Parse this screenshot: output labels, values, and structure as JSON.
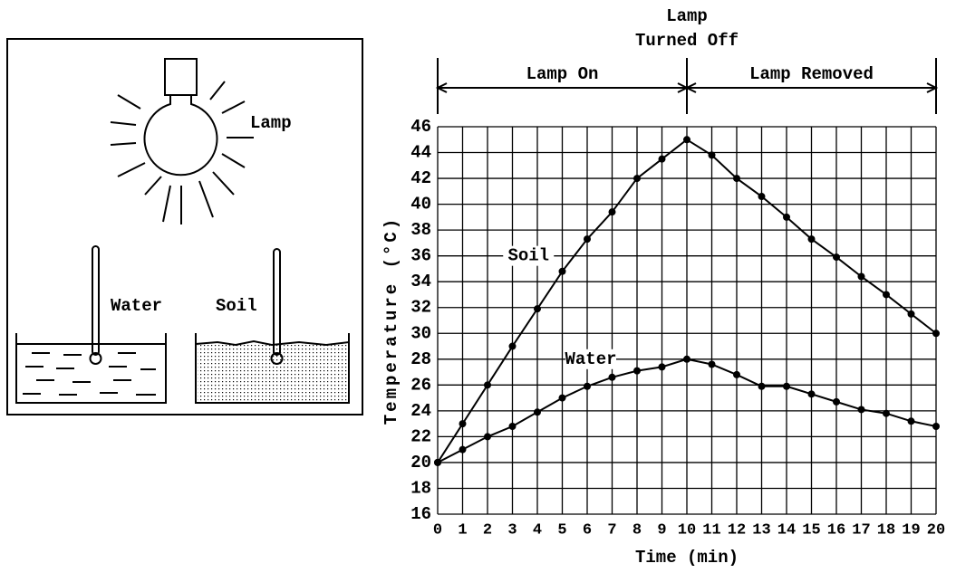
{
  "chart_data": {
    "type": "line",
    "x": [
      0,
      1,
      2,
      3,
      4,
      5,
      6,
      7,
      8,
      9,
      10,
      11,
      12,
      13,
      14,
      15,
      16,
      17,
      18,
      19,
      20
    ],
    "series": [
      {
        "name": "Soil",
        "color": "#000000",
        "values": [
          20,
          23,
          26,
          29,
          31.9,
          34.8,
          37.3,
          39.4,
          42,
          43.5,
          45,
          43.8,
          42,
          40.6,
          39,
          37.3,
          35.9,
          34.4,
          33,
          31.5,
          30
        ]
      },
      {
        "name": "Water",
        "color": "#000000",
        "values": [
          20,
          21,
          22,
          22.8,
          23.9,
          25,
          25.9,
          26.6,
          27.1,
          27.4,
          28,
          27.6,
          26.8,
          25.9,
          25.9,
          25.3,
          24.7,
          24.1,
          23.8,
          23.2,
          22.8
        ]
      }
    ],
    "xlabel": "Time (min)",
    "ylabel": "Temperature (°C)",
    "xlim": [
      0,
      20
    ],
    "xticks": [
      0,
      1,
      2,
      3,
      4,
      5,
      6,
      7,
      8,
      9,
      10,
      11,
      12,
      13,
      14,
      15,
      16,
      17,
      18,
      19,
      20
    ],
    "ylim": [
      16,
      46
    ],
    "yticks": [
      16,
      18,
      20,
      22,
      24,
      26,
      28,
      30,
      32,
      34,
      36,
      38,
      40,
      42,
      44,
      46
    ],
    "grid": true,
    "annotations": [
      "Lamp",
      "Turned Off",
      "Lamp On",
      "Lamp Removed"
    ]
  },
  "diagram": {
    "lamp_label": "Lamp",
    "water_label": "Water",
    "soil_label": "Soil"
  }
}
